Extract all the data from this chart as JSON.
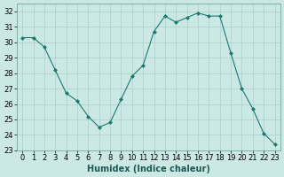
{
  "x": [
    0,
    1,
    2,
    3,
    4,
    5,
    6,
    7,
    8,
    9,
    10,
    11,
    12,
    13,
    14,
    15,
    16,
    17,
    18,
    19,
    20,
    21,
    22,
    23
  ],
  "y": [
    30.3,
    30.3,
    29.7,
    28.2,
    26.7,
    26.2,
    25.2,
    24.5,
    24.8,
    26.3,
    27.8,
    28.5,
    30.7,
    31.7,
    31.3,
    31.6,
    31.9,
    31.7,
    31.7,
    29.3,
    27.0,
    25.7,
    24.1,
    23.4
  ],
  "xlabel": "Humidex (Indice chaleur)",
  "line_color": "#1a7a6e",
  "marker": "D",
  "marker_size": 2,
  "bg_color": "#cce8e5",
  "grid_color": "#aacfcc",
  "ylim": [
    23,
    32.5
  ],
  "yticks": [
    23,
    24,
    25,
    26,
    27,
    28,
    29,
    30,
    31,
    32
  ],
  "xtick_labels": [
    "0",
    "1",
    "2",
    "3",
    "4",
    "5",
    "6",
    "7",
    "8",
    "9",
    "10",
    "11",
    "12",
    "13",
    "14",
    "15",
    "16",
    "17",
    "18",
    "19",
    "20",
    "21",
    "22",
    "23"
  ],
  "label_fontsize": 7,
  "tick_fontsize": 6
}
